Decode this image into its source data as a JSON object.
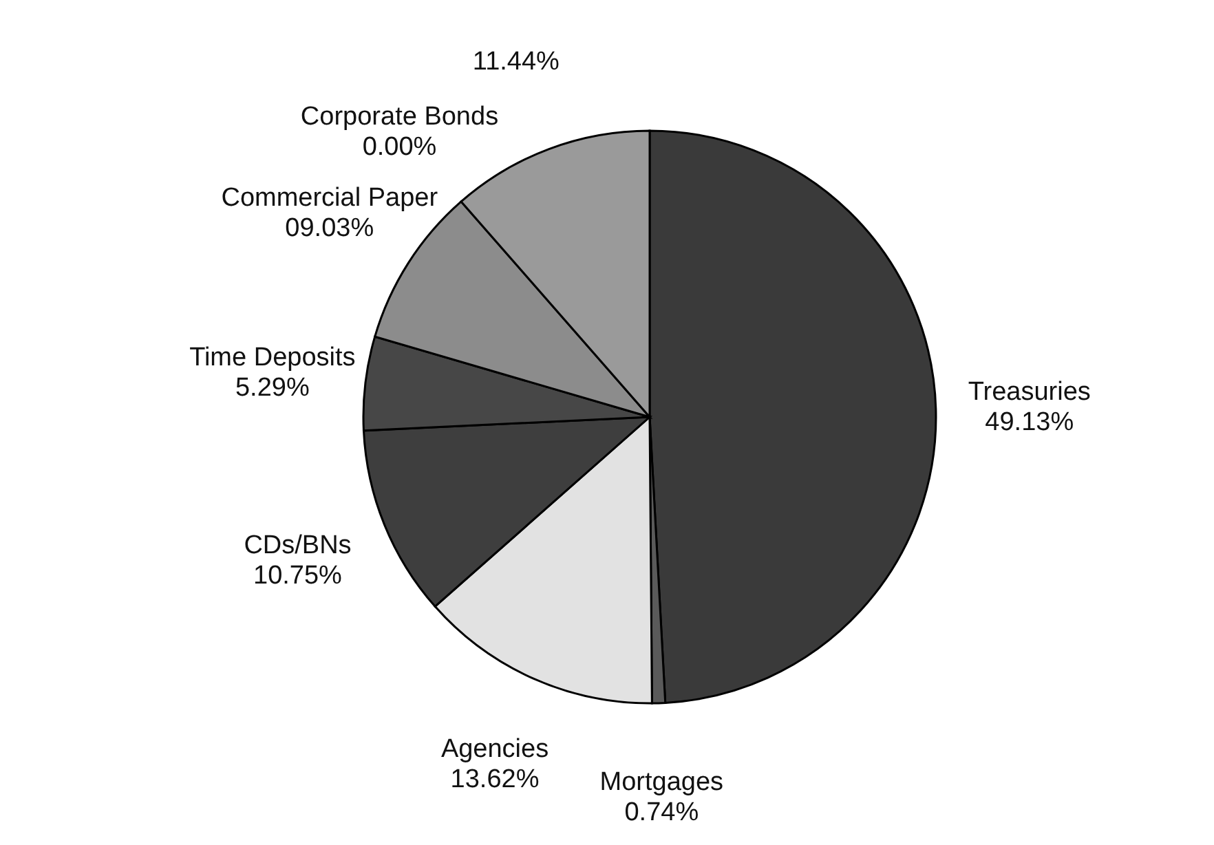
{
  "chart_data": {
    "type": "pie",
    "categories": [
      "Treasuries",
      "Mortgages",
      "Agencies",
      "CDs/BNs",
      "Time Deposits",
      "Commercial Paper",
      "Corporate Bonds",
      null
    ],
    "values": [
      49.13,
      0.74,
      13.62,
      10.75,
      5.29,
      9.03,
      0.0,
      11.44
    ],
    "value_labels": [
      "49.13%",
      "0.74%",
      "13.62%",
      "10.75%",
      "5.29%",
      "09.03%",
      "0.00%",
      "11.44%"
    ],
    "colors": [
      "#3a3a3a",
      "#5a5a5a",
      "#e2e2e2",
      "#3e3e3e",
      "#474747",
      "#8c8c8c",
      "#6e6e6e",
      "#9a9a9a"
    ],
    "legend": false
  }
}
